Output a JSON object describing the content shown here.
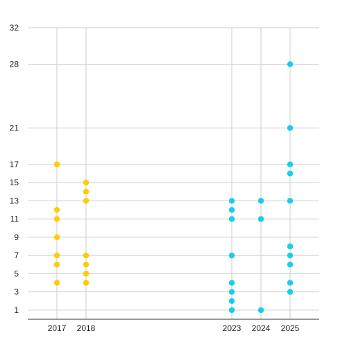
{
  "chart_data": {
    "type": "scatter",
    "title": "",
    "xlabel": "",
    "ylabel": "",
    "x_ticks": [
      2017,
      2018,
      2023,
      2024,
      2025
    ],
    "xlim": [
      2016,
      2026
    ],
    "y_ticks": [
      1,
      3,
      5,
      7,
      9,
      11,
      13,
      15,
      17,
      21,
      28,
      32
    ],
    "ylim": [
      0,
      32
    ],
    "grid": true,
    "legend": "none",
    "series": [
      {
        "color": "#FFCC00",
        "points": [
          {
            "x": 2017,
            "y": 4
          },
          {
            "x": 2017,
            "y": 6
          },
          {
            "x": 2017,
            "y": 7
          },
          {
            "x": 2017,
            "y": 9
          },
          {
            "x": 2017,
            "y": 11
          },
          {
            "x": 2017,
            "y": 12
          },
          {
            "x": 2017,
            "y": 17
          },
          {
            "x": 2018,
            "y": 4
          },
          {
            "x": 2018,
            "y": 5
          },
          {
            "x": 2018,
            "y": 6
          },
          {
            "x": 2018,
            "y": 7
          },
          {
            "x": 2018,
            "y": 13
          },
          {
            "x": 2018,
            "y": 14
          },
          {
            "x": 2018,
            "y": 15
          }
        ]
      },
      {
        "color": "#1ACDEB",
        "points": [
          {
            "x": 2023,
            "y": 1
          },
          {
            "x": 2023,
            "y": 2
          },
          {
            "x": 2023,
            "y": 3
          },
          {
            "x": 2023,
            "y": 4
          },
          {
            "x": 2023,
            "y": 7
          },
          {
            "x": 2023,
            "y": 11
          },
          {
            "x": 2023,
            "y": 12
          },
          {
            "x": 2023,
            "y": 13
          },
          {
            "x": 2024,
            "y": 1
          },
          {
            "x": 2024,
            "y": 11
          },
          {
            "x": 2024,
            "y": 13
          },
          {
            "x": 2025,
            "y": 3
          },
          {
            "x": 2025,
            "y": 4
          },
          {
            "x": 2025,
            "y": 6
          },
          {
            "x": 2025,
            "y": 7
          },
          {
            "x": 2025,
            "y": 8
          },
          {
            "x": 2025,
            "y": 13
          },
          {
            "x": 2025,
            "y": 16
          },
          {
            "x": 2025,
            "y": 17
          },
          {
            "x": 2025,
            "y": 21
          },
          {
            "x": 2025,
            "y": 28
          }
        ]
      }
    ]
  }
}
